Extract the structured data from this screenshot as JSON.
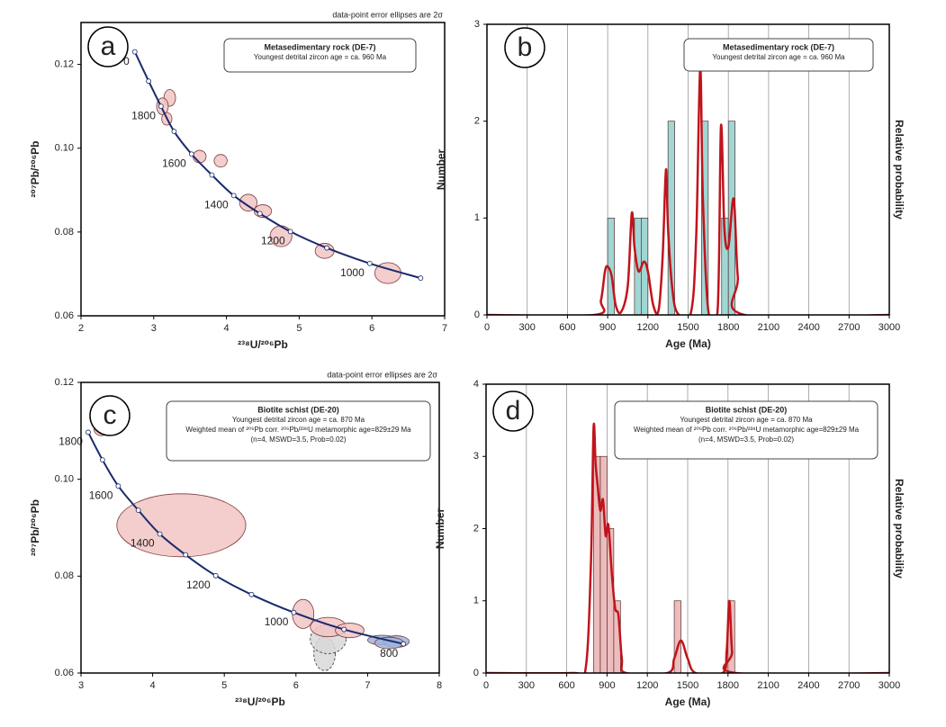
{
  "chart_data": [
    {
      "type": "concordia",
      "label": "a",
      "note": "data-point error ellipses are 2σ",
      "box_title": "Metasedimentary rock (DE-7)",
      "box_lines": [
        "Youngest detrital zircon age = ca. 960 Ma"
      ],
      "xlabel": "²³⁸U/²⁰⁶Pb",
      "ylabel": "²⁰⁷Pb/²⁰⁶Pb",
      "xlim": [
        2,
        7
      ],
      "xticks": [
        2,
        3,
        4,
        5,
        6,
        7
      ],
      "ylim": [
        0.06,
        0.13
      ],
      "yticks": [
        0.06,
        0.08,
        {
          "value": 0.1,
          "label": "0.10"
        },
        0.12
      ],
      "concordia": {
        "color": "#1a2a6c",
        "x": [
          2.74,
          2.93,
          3.1,
          3.28,
          3.52,
          3.8,
          4.1,
          4.46,
          4.88,
          5.38,
          5.97,
          6.67
        ],
        "y": [
          0.123,
          0.116,
          0.11,
          0.104,
          0.0986,
          0.0936,
          0.0887,
          0.0844,
          0.0801,
          0.0762,
          0.0725,
          0.069
        ],
        "labels": [
          "0",
          null,
          "1800",
          null,
          "1600",
          null,
          "1400",
          null,
          "1200",
          null,
          "1000",
          null
        ]
      },
      "series": [
        {
          "color": "#f2c4c4",
          "x": [
            3.22,
            3.12,
            3.18,
            3.63,
            3.92,
            4.3,
            4.5,
            4.75,
            5.35,
            6.22
          ],
          "y": [
            0.112,
            0.11,
            0.107,
            0.098,
            0.097,
            0.087,
            0.085,
            0.079,
            0.0755,
            0.0702
          ],
          "x_err": [
            0.08,
            0.08,
            0.07,
            0.09,
            0.09,
            0.12,
            0.12,
            0.15,
            0.13,
            0.18
          ],
          "y_err": [
            0.002,
            0.002,
            0.0015,
            0.0015,
            0.0015,
            0.002,
            0.0015,
            0.0025,
            0.0018,
            0.0025
          ]
        }
      ]
    },
    {
      "type": "histogram",
      "label": "b",
      "box_title": "Metasedimentary rock (DE-7)",
      "box_lines": [
        "Youngest detrital zircon age = ca. 960 Ma"
      ],
      "xlabel": "Age (Ma)",
      "ylabel": "Number",
      "y2label": "Relative probability",
      "xlim": [
        0,
        3000
      ],
      "xticks": [
        0,
        300,
        600,
        900,
        1200,
        1500,
        1800,
        2100,
        2400,
        2700,
        3000
      ],
      "ylim": [
        0,
        3
      ],
      "yticks": [
        0,
        1,
        2,
        3
      ],
      "grid": true,
      "color": "#8fd0cc",
      "bins": [
        900,
        950,
        1000,
        1050,
        1100,
        1150,
        1200,
        1250,
        1300,
        1350,
        1400,
        1450,
        1500,
        1550,
        1600,
        1650,
        1700,
        1750,
        1800,
        1850,
        1900
      ],
      "values": [
        1,
        0,
        0,
        0,
        1,
        1,
        0,
        0,
        0,
        2,
        0,
        0,
        0,
        0,
        2,
        0,
        0,
        1,
        2,
        0
      ],
      "curve": {
        "color": "#c0141c",
        "x": [
          0,
          800,
          850,
          880,
          900,
          930,
          960,
          1000,
          1050,
          1080,
          1100,
          1130,
          1170,
          1200,
          1240,
          1280,
          1310,
          1335,
          1350,
          1380,
          1420,
          1520,
          1560,
          1590,
          1610,
          1650,
          1720,
          1745,
          1770,
          1800,
          1840,
          1870,
          1920,
          3000
        ],
        "y": [
          0,
          0,
          0.15,
          0.45,
          0.5,
          0.4,
          0.1,
          0.03,
          0.3,
          1.05,
          0.7,
          0.45,
          0.55,
          0.45,
          0.1,
          0.05,
          0.6,
          1.5,
          0.9,
          0.3,
          0.02,
          0.02,
          0.8,
          2.55,
          1.2,
          0.05,
          0.05,
          1.95,
          0.9,
          0.7,
          1.2,
          0.4,
          0,
          0
        ]
      }
    },
    {
      "type": "concordia",
      "label": "c",
      "note": "data-point error ellipses are 2σ",
      "box_title": "Biotite schist (DE-20)",
      "box_lines": [
        "Youngest detrital zircon age = ca. 870 Ma",
        "Weighted mean of ²⁰⁶Pb corr. ²⁰⁶Pb/²³⁸U  metamorphic age=829±29 Ma",
        "(n=4, MSWD=3.5, Prob=0.02)"
      ],
      "xlabel": "²³⁸U/²⁰⁶Pb",
      "ylabel": "²⁰⁷Pb/²⁰⁶Pb",
      "xlim": [
        3,
        8
      ],
      "xticks": [
        3,
        4,
        5,
        6,
        7,
        8
      ],
      "ylim": [
        0.06,
        0.12
      ],
      "yticks": [
        0.06,
        0.08,
        {
          "value": 0.1,
          "label": "0.10"
        },
        0.12
      ],
      "concordia": {
        "color": "#1a2a6c",
        "x": [
          3.1,
          3.3,
          3.52,
          3.8,
          4.1,
          4.46,
          4.88,
          5.38,
          5.97,
          6.67,
          7.5
        ],
        "y": [
          0.1097,
          0.104,
          0.0986,
          0.0936,
          0.0887,
          0.0844,
          0.0801,
          0.0762,
          0.0725,
          0.069,
          0.066
        ],
        "labels": [
          "1800",
          null,
          "1600",
          null,
          "1400",
          null,
          "1200",
          null,
          "1000",
          null,
          "800"
        ]
      },
      "series": [
        {
          "color": "#d8d8d8",
          "dashed": true,
          "x": [
            6.4,
            6.45
          ],
          "y": [
            0.064,
            0.067
          ],
          "x_err": [
            0.15,
            0.25
          ],
          "y_err": [
            0.0035,
            0.003
          ]
        },
        {
          "color": "#f2c4c4",
          "x": [
            3.28,
            4.4,
            6.1,
            6.45,
            6.75
          ],
          "y": [
            0.1105,
            0.0905,
            0.0722,
            0.0695,
            0.0688
          ],
          "x_err": [
            0.1,
            0.9,
            0.15,
            0.25,
            0.2
          ],
          "y_err": [
            0.0015,
            0.0065,
            0.003,
            0.002,
            0.0015
          ]
        },
        {
          "color": "#9fb4dc",
          "x": [
            7.2,
            7.4,
            7.3
          ],
          "y": [
            0.0668,
            0.0665,
            0.0662
          ],
          "x_err": [
            0.2,
            0.18,
            0.2
          ],
          "y_err": [
            0.001,
            0.0012,
            0.0012
          ]
        }
      ]
    },
    {
      "type": "histogram",
      "label": "d",
      "box_title": "Biotite schist (DE-20)",
      "box_lines": [
        "Youngest detrital zircon age = ca. 870 Ma",
        "Weighted mean of ²⁰⁶Pb corr. ²⁰⁶Pb/²³⁸U  metamorphic age=829±29 Ma",
        "(n=4, MSWD=3.5, Prob=0.02)"
      ],
      "xlabel": "Age (Ma)",
      "ylabel": "Number",
      "y2label": "Relative probability",
      "xlim": [
        0,
        3000
      ],
      "xticks": [
        0,
        300,
        600,
        900,
        1200,
        1500,
        1800,
        2100,
        2400,
        2700,
        3000
      ],
      "ylim": [
        0,
        4
      ],
      "yticks": [
        0,
        1,
        2,
        3,
        4
      ],
      "grid": true,
      "color": "#eab0b0",
      "bins": [
        800,
        850,
        900,
        950,
        1000,
        1050,
        1100,
        1150,
        1200,
        1250,
        1300,
        1350,
        1400,
        1450,
        1500,
        1550,
        1600,
        1650,
        1700,
        1750,
        1800,
        1850
      ],
      "values": [
        3,
        3,
        2,
        1,
        0,
        0,
        0,
        0,
        0,
        0,
        0,
        0,
        1,
        0,
        0,
        0,
        0,
        0,
        0,
        0,
        1
      ],
      "curve": {
        "color": "#c0141c",
        "x": [
          0,
          650,
          740,
          780,
          800,
          815,
          830,
          850,
          870,
          890,
          910,
          935,
          960,
          985,
          1010,
          1040,
          1350,
          1400,
          1450,
          1500,
          1560,
          1760,
          1790,
          1810,
          1830,
          1860,
          3000
        ],
        "y": [
          0,
          0,
          0.05,
          1.5,
          3.4,
          2.9,
          2.6,
          2.25,
          2.4,
          1.9,
          2.05,
          1.4,
          0.9,
          0.8,
          0.2,
          0,
          0,
          0.2,
          0.45,
          0.2,
          0,
          0,
          0.3,
          1.0,
          0.3,
          0,
          0
        ]
      }
    }
  ]
}
